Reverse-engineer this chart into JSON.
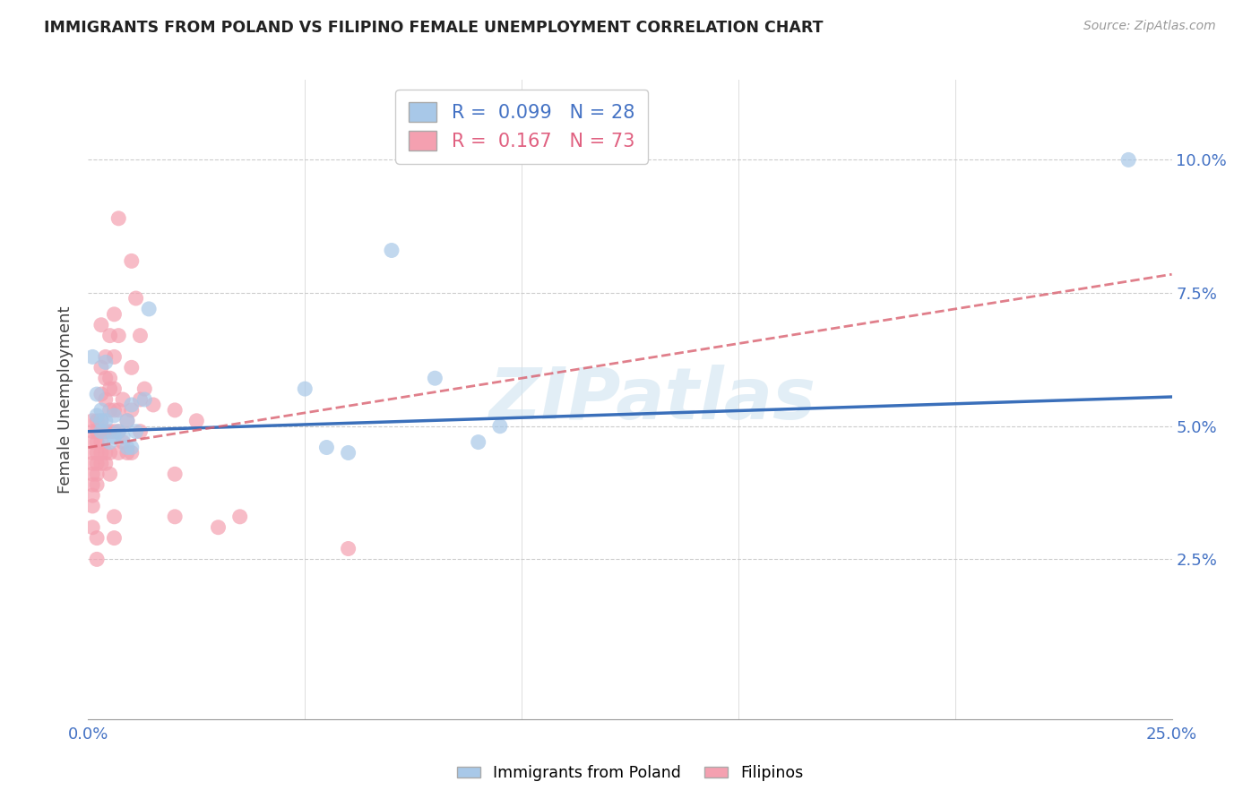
{
  "title": "IMMIGRANTS FROM POLAND VS FILIPINO FEMALE UNEMPLOYMENT CORRELATION CHART",
  "source": "Source: ZipAtlas.com",
  "ylabel": "Female Unemployment",
  "right_yticks": [
    "10.0%",
    "7.5%",
    "5.0%",
    "2.5%"
  ],
  "right_ytick_vals": [
    0.1,
    0.075,
    0.05,
    0.025
  ],
  "legend_blue_r": "R =  0.099",
  "legend_blue_n": "N = 28",
  "legend_pink_r": "R =  0.167",
  "legend_pink_n": "N = 73",
  "xlim": [
    0.0,
    0.25
  ],
  "ylim": [
    -0.005,
    0.115
  ],
  "blue_color": "#a8c8e8",
  "pink_color": "#f4a0b0",
  "blue_line_color": "#3a6fba",
  "pink_line_color": "#d95f6e",
  "watermark": "ZIPatlas",
  "blue_line_x": [
    0.0,
    0.25
  ],
  "blue_line_y": [
    0.049,
    0.0555
  ],
  "pink_line_x": [
    0.0,
    0.25
  ],
  "pink_line_y": [
    0.046,
    0.0785
  ],
  "poland_points": [
    [
      0.001,
      0.063
    ],
    [
      0.002,
      0.056
    ],
    [
      0.002,
      0.052
    ],
    [
      0.003,
      0.053
    ],
    [
      0.003,
      0.051
    ],
    [
      0.003,
      0.049
    ],
    [
      0.004,
      0.062
    ],
    [
      0.004,
      0.051
    ],
    [
      0.005,
      0.047
    ],
    [
      0.006,
      0.052
    ],
    [
      0.006,
      0.048
    ],
    [
      0.007,
      0.049
    ],
    [
      0.008,
      0.048
    ],
    [
      0.009,
      0.051
    ],
    [
      0.009,
      0.046
    ],
    [
      0.01,
      0.054
    ],
    [
      0.01,
      0.046
    ],
    [
      0.011,
      0.049
    ],
    [
      0.013,
      0.055
    ],
    [
      0.014,
      0.072
    ],
    [
      0.05,
      0.057
    ],
    [
      0.055,
      0.046
    ],
    [
      0.06,
      0.045
    ],
    [
      0.07,
      0.083
    ],
    [
      0.08,
      0.059
    ],
    [
      0.09,
      0.047
    ],
    [
      0.095,
      0.05
    ],
    [
      0.24,
      0.1
    ]
  ],
  "filipino_points": [
    [
      0.001,
      0.051
    ],
    [
      0.001,
      0.049
    ],
    [
      0.001,
      0.047
    ],
    [
      0.001,
      0.045
    ],
    [
      0.001,
      0.043
    ],
    [
      0.001,
      0.041
    ],
    [
      0.001,
      0.039
    ],
    [
      0.001,
      0.037
    ],
    [
      0.001,
      0.035
    ],
    [
      0.001,
      0.031
    ],
    [
      0.002,
      0.051
    ],
    [
      0.002,
      0.049
    ],
    [
      0.002,
      0.047
    ],
    [
      0.002,
      0.045
    ],
    [
      0.002,
      0.043
    ],
    [
      0.002,
      0.041
    ],
    [
      0.002,
      0.039
    ],
    [
      0.002,
      0.029
    ],
    [
      0.002,
      0.025
    ],
    [
      0.003,
      0.069
    ],
    [
      0.003,
      0.061
    ],
    [
      0.003,
      0.056
    ],
    [
      0.003,
      0.051
    ],
    [
      0.003,
      0.049
    ],
    [
      0.003,
      0.047
    ],
    [
      0.003,
      0.045
    ],
    [
      0.003,
      0.043
    ],
    [
      0.004,
      0.063
    ],
    [
      0.004,
      0.059
    ],
    [
      0.004,
      0.055
    ],
    [
      0.004,
      0.049
    ],
    [
      0.004,
      0.045
    ],
    [
      0.004,
      0.043
    ],
    [
      0.005,
      0.067
    ],
    [
      0.005,
      0.059
    ],
    [
      0.005,
      0.057
    ],
    [
      0.005,
      0.053
    ],
    [
      0.005,
      0.049
    ],
    [
      0.005,
      0.045
    ],
    [
      0.005,
      0.041
    ],
    [
      0.006,
      0.071
    ],
    [
      0.006,
      0.063
    ],
    [
      0.006,
      0.057
    ],
    [
      0.006,
      0.053
    ],
    [
      0.006,
      0.049
    ],
    [
      0.006,
      0.033
    ],
    [
      0.006,
      0.029
    ],
    [
      0.007,
      0.089
    ],
    [
      0.007,
      0.067
    ],
    [
      0.007,
      0.053
    ],
    [
      0.007,
      0.049
    ],
    [
      0.007,
      0.045
    ],
    [
      0.008,
      0.055
    ],
    [
      0.008,
      0.047
    ],
    [
      0.009,
      0.051
    ],
    [
      0.009,
      0.045
    ],
    [
      0.01,
      0.081
    ],
    [
      0.01,
      0.061
    ],
    [
      0.01,
      0.053
    ],
    [
      0.01,
      0.045
    ],
    [
      0.011,
      0.074
    ],
    [
      0.012,
      0.067
    ],
    [
      0.012,
      0.055
    ],
    [
      0.012,
      0.049
    ],
    [
      0.013,
      0.057
    ],
    [
      0.015,
      0.054
    ],
    [
      0.02,
      0.053
    ],
    [
      0.02,
      0.041
    ],
    [
      0.02,
      0.033
    ],
    [
      0.025,
      0.051
    ],
    [
      0.03,
      0.031
    ],
    [
      0.035,
      0.033
    ],
    [
      0.06,
      0.027
    ]
  ]
}
